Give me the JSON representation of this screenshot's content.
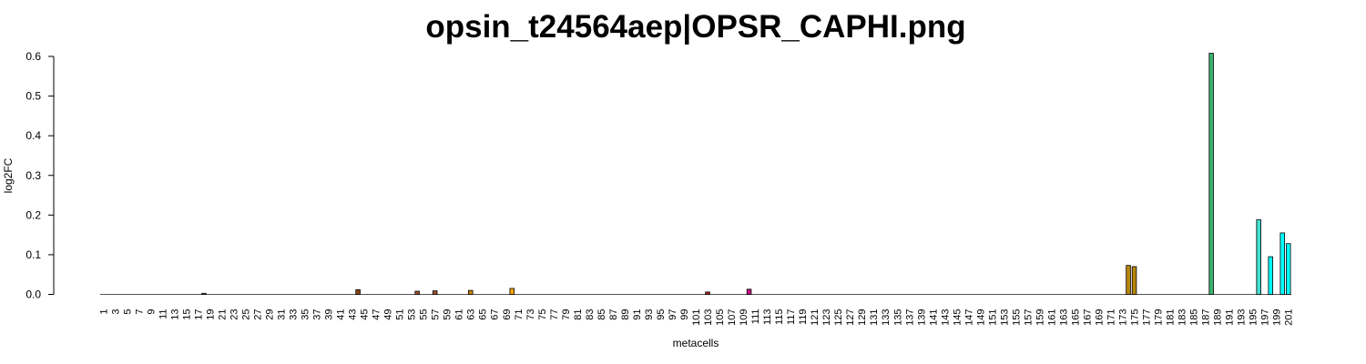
{
  "chart_data": {
    "type": "bar",
    "title": "opsin_t24564aep|OPSR_CAPHI.png",
    "xlabel": "metacells",
    "ylabel": "log2FC",
    "ylim": [
      0,
      0.6
    ],
    "yticks": [
      "0.0",
      "0.1",
      "0.2",
      "0.3",
      "0.4",
      "0.5",
      "0.6"
    ],
    "n_categories": 201,
    "x_tick_labels": [
      "1",
      "3",
      "5",
      "7",
      "9",
      "11",
      "13",
      "15",
      "17",
      "19",
      "21",
      "23",
      "25",
      "27",
      "29",
      "31",
      "33",
      "35",
      "37",
      "39",
      "41",
      "43",
      "45",
      "47",
      "49",
      "51",
      "53",
      "55",
      "57",
      "59",
      "61",
      "63",
      "65",
      "67",
      "69",
      "71",
      "73",
      "75",
      "77",
      "79",
      "81",
      "83",
      "85",
      "87",
      "89",
      "91",
      "93",
      "95",
      "97",
      "99",
      "101",
      "103",
      "105",
      "107",
      "109",
      "111",
      "113",
      "115",
      "117",
      "119",
      "121",
      "123",
      "125",
      "127",
      "129",
      "131",
      "133",
      "135",
      "137",
      "139",
      "141",
      "143",
      "145",
      "147",
      "149",
      "151",
      "153",
      "155",
      "157",
      "159",
      "161",
      "163",
      "165",
      "167",
      "169",
      "171",
      "173",
      "175",
      "177",
      "179",
      "181",
      "183",
      "185",
      "187",
      "189",
      "191",
      "193",
      "195",
      "197",
      "199",
      "201"
    ],
    "nonzero_bars": [
      {
        "metacell": 18,
        "value": 0.002,
        "color": "#8b7d6b"
      },
      {
        "metacell": 44,
        "value": 0.012,
        "color": "#8b4513"
      },
      {
        "metacell": 54,
        "value": 0.008,
        "color": "#a0522d"
      },
      {
        "metacell": 57,
        "value": 0.009,
        "color": "#a0522d"
      },
      {
        "metacell": 63,
        "value": 0.01,
        "color": "#cd8500"
      },
      {
        "metacell": 70,
        "value": 0.015,
        "color": "#ffa500"
      },
      {
        "metacell": 103,
        "value": 0.006,
        "color": "#b22222"
      },
      {
        "metacell": 110,
        "value": 0.013,
        "color": "#c71585"
      },
      {
        "metacell": 174,
        "value": 0.073,
        "color": "#b8860b"
      },
      {
        "metacell": 175,
        "value": 0.07,
        "color": "#b8860b"
      },
      {
        "metacell": 188,
        "value": 0.608,
        "color": "#3cb371"
      },
      {
        "metacell": 196,
        "value": 0.188,
        "color": "#40e0d0"
      },
      {
        "metacell": 198,
        "value": 0.095,
        "color": "#00ffff"
      },
      {
        "metacell": 200,
        "value": 0.155,
        "color": "#00ffff"
      },
      {
        "metacell": 201,
        "value": 0.128,
        "color": "#00ffff"
      }
    ],
    "zero_bar_color": "#d3d3d3",
    "grid": false,
    "legend": "none"
  }
}
